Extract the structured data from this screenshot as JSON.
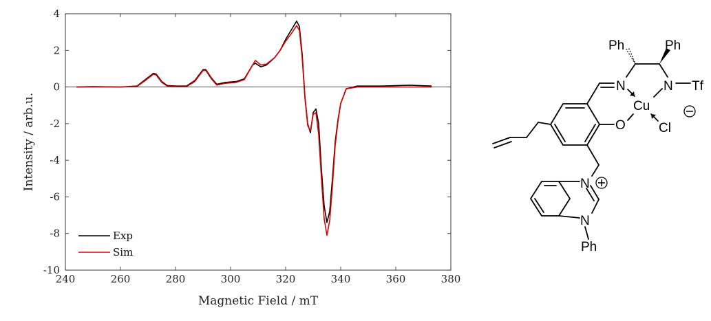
{
  "chart_data": {
    "type": "line",
    "xlabel": "Magnetic Field / mT",
    "ylabel": "Intensity / arb.u.",
    "xlim": [
      240,
      380
    ],
    "ylim": [
      -10,
      4
    ],
    "xticks": [
      240,
      260,
      280,
      300,
      320,
      340,
      360,
      380
    ],
    "yticks": [
      -10,
      -8,
      -6,
      -4,
      -2,
      0,
      2,
      4
    ],
    "grid": false,
    "legend_position": "bottom-left",
    "zero_line": true,
    "series": [
      {
        "name": "Exp",
        "color": "#000000",
        "x": [
          244,
          250,
          260,
          266,
          269,
          272,
          273,
          275,
          277,
          280,
          284,
          287,
          290,
          291,
          293,
          295,
          298,
          302,
          305,
          308,
          309,
          311,
          313,
          316,
          318,
          320,
          322,
          324,
          325,
          326,
          327,
          328,
          329,
          330,
          331,
          332,
          333,
          334,
          335,
          336,
          337,
          338,
          339,
          340,
          342,
          346,
          355,
          365,
          373
        ],
        "y": [
          0,
          0.02,
          0,
          0.05,
          0.4,
          0.75,
          0.7,
          0.3,
          0.08,
          0.05,
          0.05,
          0.35,
          0.95,
          0.95,
          0.5,
          0.15,
          0.25,
          0.3,
          0.45,
          1.2,
          1.3,
          1.1,
          1.2,
          1.6,
          2.0,
          2.6,
          3.1,
          3.6,
          3.3,
          1.8,
          -0.5,
          -2.0,
          -2.5,
          -1.4,
          -1.2,
          -2.0,
          -4.5,
          -6.5,
          -7.4,
          -6.8,
          -5.0,
          -3.0,
          -1.8,
          -0.9,
          -0.1,
          0.05,
          0.05,
          0.1,
          0.05
        ]
      },
      {
        "name": "Sim",
        "color": "#dd0000",
        "x": [
          244,
          250,
          260,
          266,
          269,
          272,
          273,
          275,
          277,
          280,
          284,
          287,
          290,
          291,
          293,
          295,
          298,
          302,
          305,
          308,
          309,
          311,
          313,
          316,
          318,
          320,
          322,
          324,
          325,
          326,
          327,
          328,
          329,
          330,
          331,
          332,
          333,
          334,
          335,
          336,
          337,
          338,
          339,
          340,
          342,
          346,
          355,
          365,
          373
        ],
        "y": [
          0,
          0,
          0,
          0.03,
          0.35,
          0.7,
          0.65,
          0.25,
          0.05,
          0.02,
          0.02,
          0.3,
          0.9,
          0.9,
          0.45,
          0.1,
          0.2,
          0.25,
          0.4,
          1.2,
          1.45,
          1.2,
          1.25,
          1.6,
          2.0,
          2.5,
          2.9,
          3.35,
          3.1,
          1.6,
          -0.6,
          -2.1,
          -2.4,
          -1.5,
          -1.4,
          -2.6,
          -5.0,
          -7.2,
          -8.1,
          -7.3,
          -5.4,
          -3.2,
          -1.9,
          -0.9,
          -0.1,
          0,
          0,
          0,
          0
        ]
      }
    ]
  },
  "structure": {
    "labels": {
      "ph_top_left": "Ph",
      "ph_top_right": "Ph",
      "n_imine": "N",
      "n_tf": "N",
      "tf": "Tf",
      "cu": "Cu",
      "o": "O",
      "cl": "Cl",
      "n_cation": "N",
      "n_benz": "N",
      "ph_bottom": "Ph"
    }
  }
}
